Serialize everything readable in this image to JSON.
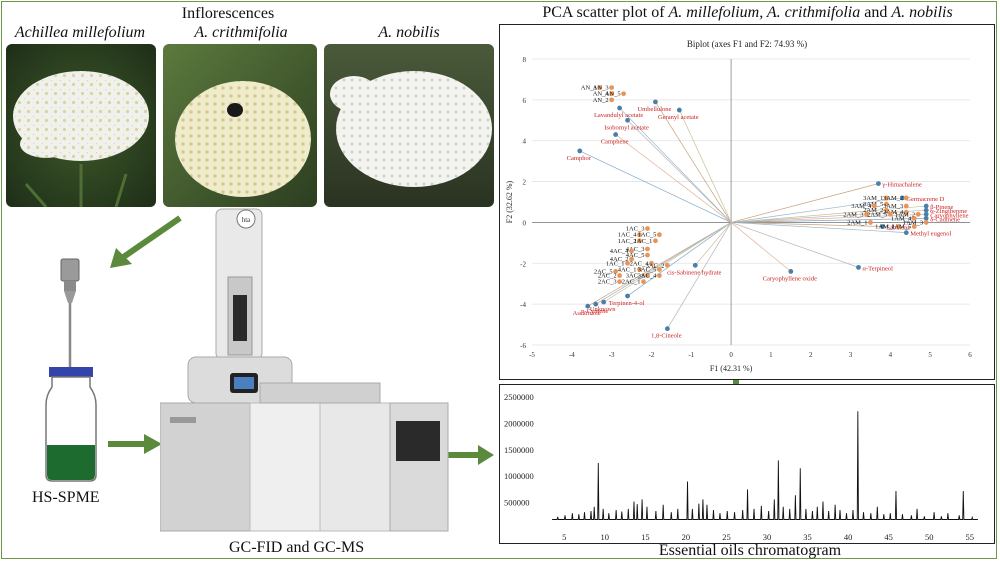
{
  "header": {
    "inflorescences": "Inflorescences",
    "species": [
      "Achillea millefolium",
      "A. crithmifolia",
      "A. nobilis"
    ],
    "pca_title_prefix": "PCA scatter plot  of ",
    "pca_title_species": "A. millefolium, A. crithmifolia",
    "pca_title_and": " and ",
    "pca_title_last": "A. nobilis"
  },
  "labels": {
    "hsspme": "HS-SPME",
    "gc": "GC-FID  and GC-MS",
    "chromatogram": "Essential oils chromatogram",
    "instrument_badge": "hta"
  },
  "colors": {
    "arrow": "#5b8a3c",
    "variable_point": "#4a7fa8",
    "sample_point": "#e8955a",
    "variable_text": "#cc2222",
    "vial_liquid": "#1d6b2e",
    "vial_cap": "#3344aa"
  },
  "chart_data": [
    {
      "type": "scatter",
      "title": "Biplot (axes F1 and F2: 74.93 %)",
      "xlabel": "F1 (42.31 %)",
      "ylabel": "F2 (32.62 %)",
      "xlim": [
        -5,
        6
      ],
      "ylim": [
        -6,
        8
      ],
      "xticks": [
        -5,
        -4,
        -3,
        -2,
        -1,
        0,
        1,
        2,
        3,
        4,
        5,
        6
      ],
      "yticks": [
        -6,
        -4,
        -2,
        0,
        2,
        4,
        6,
        8
      ],
      "grid": true,
      "variables": [
        {
          "name": "Umbellulone",
          "x": -1.9,
          "y": 5.9
        },
        {
          "name": "Lavandulyl acetate",
          "x": -2.8,
          "y": 5.6
        },
        {
          "name": "Geranyl acetate",
          "x": -1.3,
          "y": 5.5
        },
        {
          "name": "Isobornyl acetate",
          "x": -2.6,
          "y": 5.0
        },
        {
          "name": "Camphene",
          "x": -2.9,
          "y": 4.3
        },
        {
          "name": "Camphor",
          "x": -3.8,
          "y": 3.5
        },
        {
          "name": "γ-Himachalene",
          "x": 3.7,
          "y": 1.9
        },
        {
          "name": "Germacrene D",
          "x": 4.3,
          "y": 1.2
        },
        {
          "name": "β-Pinene",
          "x": 4.9,
          "y": 0.8
        },
        {
          "name": "α-Zingiberene",
          "x": 4.9,
          "y": 0.6
        },
        {
          "name": "Caryophyllene",
          "x": 4.9,
          "y": 0.4
        },
        {
          "name": "δ-Cadinene",
          "x": 4.9,
          "y": 0.2
        },
        {
          "name": "Sabinene",
          "x": 3.8,
          "y": -0.2
        },
        {
          "name": "Methyl eugenol",
          "x": 4.4,
          "y": -0.5
        },
        {
          "name": "cis-Sabinene hydrate",
          "x": -0.9,
          "y": -2.1
        },
        {
          "name": "α-Terpineol",
          "x": 3.2,
          "y": -2.2
        },
        {
          "name": "Caryophyllene oxide",
          "x": 1.5,
          "y": -2.4
        },
        {
          "name": "Terpinen-4-ol",
          "x": -2.6,
          "y": -3.6
        },
        {
          "name": "Ascaridole",
          "x": -3.6,
          "y": -4.1
        },
        {
          "name": "p-Cymene",
          "x": -3.4,
          "y": -4.0
        },
        {
          "name": "Unknown",
          "x": -3.2,
          "y": -3.9
        },
        {
          "name": "1,8-Cineole",
          "x": -1.6,
          "y": -5.2
        }
      ],
      "samples": [
        {
          "name": "AN_1",
          "x": -3.3,
          "y": 6.6
        },
        {
          "name": "AN_3",
          "x": -3.0,
          "y": 6.6
        },
        {
          "name": "AN_4",
          "x": -3.0,
          "y": 6.3
        },
        {
          "name": "AN_5",
          "x": -2.7,
          "y": 6.3
        },
        {
          "name": "AN_2",
          "x": -3.0,
          "y": 6.0
        },
        {
          "name": "3AM_1",
          "x": 3.9,
          "y": 1.2
        },
        {
          "name": "3AM_2",
          "x": 4.4,
          "y": 1.2
        },
        {
          "name": "3AM_5",
          "x": 3.9,
          "y": 0.9
        },
        {
          "name": "3AM_3",
          "x": 4.4,
          "y": 0.8
        },
        {
          "name": "3AM_4",
          "x": 3.6,
          "y": 0.8
        },
        {
          "name": "2AM_2",
          "x": 3.9,
          "y": 0.6
        },
        {
          "name": "2AM_4",
          "x": 4.4,
          "y": 0.5
        },
        {
          "name": "2AM_3",
          "x": 3.4,
          "y": 0.4
        },
        {
          "name": "2AM_5",
          "x": 4.0,
          "y": 0.4
        },
        {
          "name": "1AM_2",
          "x": 4.7,
          "y": 0.4
        },
        {
          "name": "1AM_4",
          "x": 4.6,
          "y": 0.2
        },
        {
          "name": "2AM_1",
          "x": 3.5,
          "y": 0.0
        },
        {
          "name": "1AM_3",
          "x": 4.9,
          "y": 0.0
        },
        {
          "name": "1AM_1",
          "x": 4.2,
          "y": -0.2
        },
        {
          "name": "1AM_5",
          "x": 4.6,
          "y": -0.2
        },
        {
          "name": "1AC_3",
          "x": -2.1,
          "y": -0.3
        },
        {
          "name": "1AC_4",
          "x": -2.3,
          "y": -0.6
        },
        {
          "name": "1AC_5",
          "x": -1.8,
          "y": -0.6
        },
        {
          "name": "1AC_2",
          "x": -2.3,
          "y": -0.9
        },
        {
          "name": "1AC_1",
          "x": -1.9,
          "y": -0.9
        },
        {
          "name": "4AC_3",
          "x": -2.1,
          "y": -1.3
        },
        {
          "name": "4AC_4",
          "x": -2.5,
          "y": -1.4
        },
        {
          "name": "4AC_5",
          "x": -2.1,
          "y": -1.6
        },
        {
          "name": "4AC_2",
          "x": -2.5,
          "y": -1.8
        },
        {
          "name": "1AC_1",
          "x": -2.6,
          "y": -2.0
        },
        {
          "name": "2AC_4",
          "x": -2.0,
          "y": -2.0
        },
        {
          "name": "3AC_2",
          "x": -1.6,
          "y": -2.1
        },
        {
          "name": "2AC_5",
          "x": -2.9,
          "y": -2.4
        },
        {
          "name": "4AC_1",
          "x": -2.3,
          "y": -2.3
        },
        {
          "name": "3AC_5",
          "x": -1.8,
          "y": -2.3
        },
        {
          "name": "2AC_2",
          "x": -2.8,
          "y": -2.6
        },
        {
          "name": "3AC_1",
          "x": -2.1,
          "y": -2.6
        },
        {
          "name": "3AC_4",
          "x": -1.8,
          "y": -2.6
        },
        {
          "name": "2AC_3",
          "x": -2.8,
          "y": -2.9
        },
        {
          "name": "2AC_1",
          "x": -2.2,
          "y": -2.9
        }
      ]
    },
    {
      "type": "line",
      "title": "",
      "xlabel": "",
      "ylabel": "",
      "xlim": [
        3,
        57
      ],
      "ylim": [
        0,
        2500000
      ],
      "xticks": [
        5,
        10,
        15,
        20,
        25,
        30,
        35,
        40,
        45,
        50,
        55
      ],
      "yticks": [
        500000,
        1000000,
        1500000,
        2000000,
        2500000
      ],
      "ytick_labels": [
        "500000",
        "1000000",
        "1500000",
        "2000000",
        "2500000"
      ],
      "baseline": 180000,
      "peaks": [
        {
          "x": 4.2,
          "y": 230000
        },
        {
          "x": 5.1,
          "y": 260000
        },
        {
          "x": 6.0,
          "y": 300000
        },
        {
          "x": 6.8,
          "y": 280000
        },
        {
          "x": 7.5,
          "y": 320000
        },
        {
          "x": 8.3,
          "y": 340000
        },
        {
          "x": 8.7,
          "y": 420000
        },
        {
          "x": 9.2,
          "y": 1250000
        },
        {
          "x": 9.8,
          "y": 380000
        },
        {
          "x": 10.5,
          "y": 300000
        },
        {
          "x": 11.4,
          "y": 360000
        },
        {
          "x": 12.1,
          "y": 330000
        },
        {
          "x": 12.9,
          "y": 380000
        },
        {
          "x": 13.6,
          "y": 520000
        },
        {
          "x": 14.0,
          "y": 470000
        },
        {
          "x": 14.6,
          "y": 560000
        },
        {
          "x": 15.2,
          "y": 420000
        },
        {
          "x": 16.3,
          "y": 340000
        },
        {
          "x": 17.2,
          "y": 460000
        },
        {
          "x": 18.2,
          "y": 320000
        },
        {
          "x": 19.0,
          "y": 380000
        },
        {
          "x": 20.2,
          "y": 900000
        },
        {
          "x": 20.8,
          "y": 380000
        },
        {
          "x": 21.6,
          "y": 480000
        },
        {
          "x": 22.1,
          "y": 560000
        },
        {
          "x": 22.6,
          "y": 460000
        },
        {
          "x": 23.4,
          "y": 360000
        },
        {
          "x": 24.2,
          "y": 300000
        },
        {
          "x": 25.1,
          "y": 340000
        },
        {
          "x": 26.0,
          "y": 320000
        },
        {
          "x": 27.0,
          "y": 360000
        },
        {
          "x": 27.6,
          "y": 750000
        },
        {
          "x": 28.4,
          "y": 380000
        },
        {
          "x": 29.3,
          "y": 440000
        },
        {
          "x": 30.2,
          "y": 340000
        },
        {
          "x": 30.9,
          "y": 560000
        },
        {
          "x": 31.4,
          "y": 1300000
        },
        {
          "x": 32.0,
          "y": 420000
        },
        {
          "x": 32.8,
          "y": 380000
        },
        {
          "x": 33.5,
          "y": 640000
        },
        {
          "x": 34.1,
          "y": 1150000
        },
        {
          "x": 34.8,
          "y": 380000
        },
        {
          "x": 35.6,
          "y": 340000
        },
        {
          "x": 36.2,
          "y": 420000
        },
        {
          "x": 36.9,
          "y": 520000
        },
        {
          "x": 37.6,
          "y": 340000
        },
        {
          "x": 38.4,
          "y": 460000
        },
        {
          "x": 39.0,
          "y": 360000
        },
        {
          "x": 39.8,
          "y": 300000
        },
        {
          "x": 40.6,
          "y": 360000
        },
        {
          "x": 41.2,
          "y": 2230000
        },
        {
          "x": 41.9,
          "y": 320000
        },
        {
          "x": 42.8,
          "y": 300000
        },
        {
          "x": 43.6,
          "y": 420000
        },
        {
          "x": 44.4,
          "y": 280000
        },
        {
          "x": 45.2,
          "y": 300000
        },
        {
          "x": 45.9,
          "y": 720000
        },
        {
          "x": 46.7,
          "y": 280000
        },
        {
          "x": 47.8,
          "y": 260000
        },
        {
          "x": 48.5,
          "y": 380000
        },
        {
          "x": 49.4,
          "y": 240000
        },
        {
          "x": 50.6,
          "y": 320000
        },
        {
          "x": 51.5,
          "y": 240000
        },
        {
          "x": 52.3,
          "y": 300000
        },
        {
          "x": 53.7,
          "y": 260000
        },
        {
          "x": 54.2,
          "y": 720000
        },
        {
          "x": 55.3,
          "y": 220000
        }
      ]
    }
  ]
}
